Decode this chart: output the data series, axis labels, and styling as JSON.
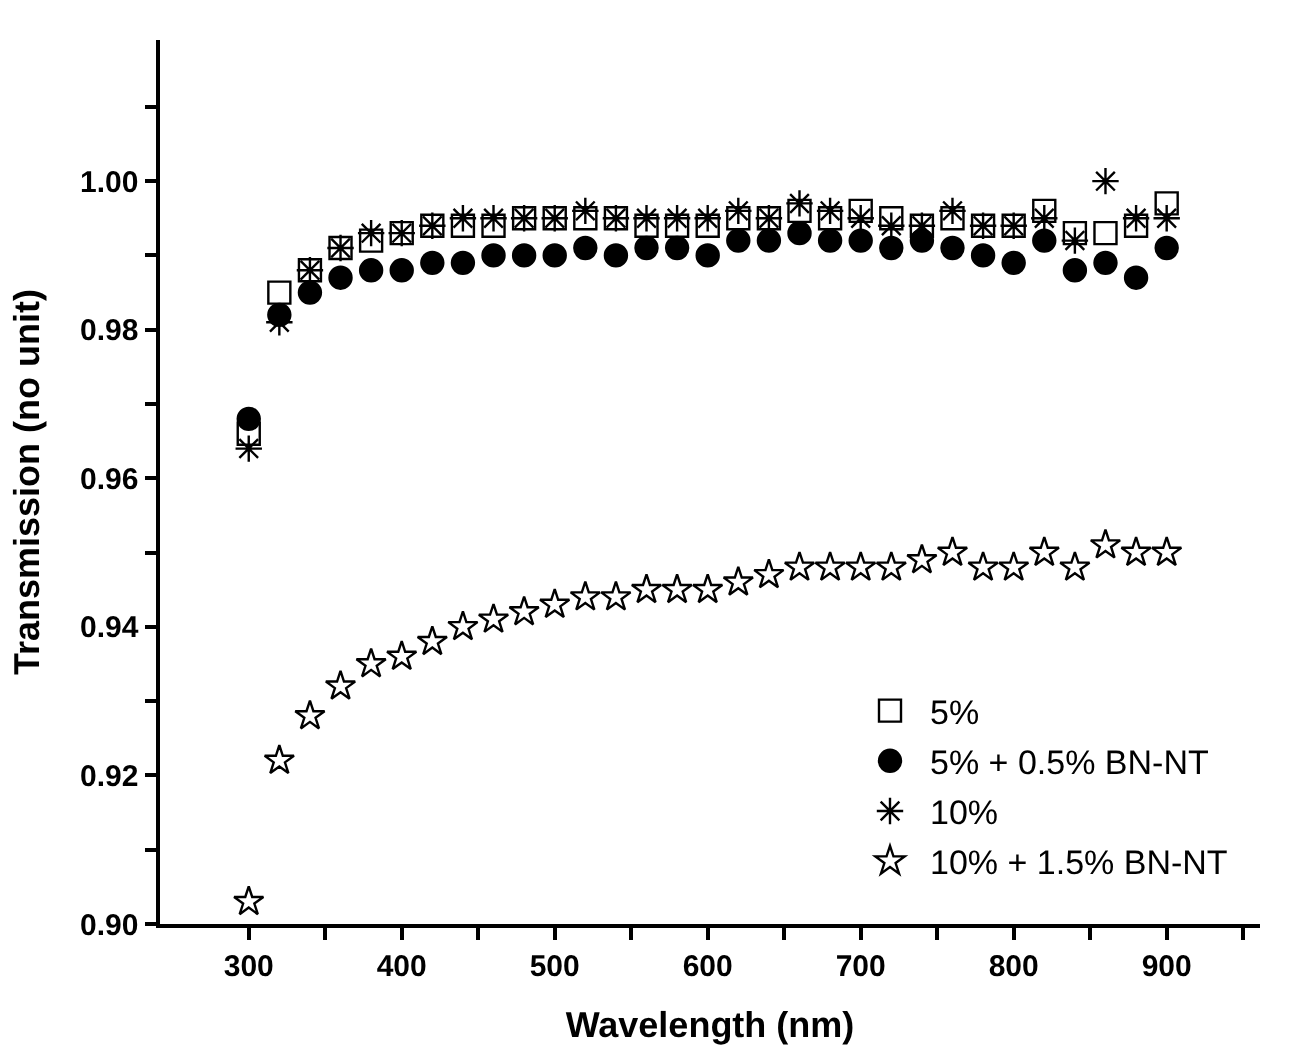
{
  "chart_data": {
    "type": "scatter",
    "xlabel": "Wavelength (nm)",
    "ylabel": "Transmission (no unit)",
    "x": [
      300,
      320,
      340,
      360,
      380,
      400,
      420,
      440,
      460,
      480,
      500,
      520,
      540,
      560,
      580,
      600,
      620,
      640,
      660,
      680,
      700,
      720,
      740,
      760,
      780,
      800,
      820,
      840,
      860,
      880,
      900
    ],
    "series": [
      {
        "name": "5%",
        "color": "#000000",
        "marker": "square",
        "values": [
          0.966,
          0.985,
          0.988,
          0.991,
          0.992,
          0.993,
          0.994,
          0.994,
          0.994,
          0.995,
          0.995,
          0.995,
          0.995,
          0.994,
          0.994,
          0.994,
          0.995,
          0.995,
          0.996,
          0.995,
          0.996,
          0.995,
          0.994,
          0.995,
          0.994,
          0.994,
          0.996,
          0.993,
          0.993,
          0.994,
          0.997
        ]
      },
      {
        "name": "5% + 0.5% BN-NT",
        "color": "#000000",
        "marker": "circle",
        "values": [
          0.968,
          0.982,
          0.985,
          0.987,
          0.988,
          0.988,
          0.989,
          0.989,
          0.99,
          0.99,
          0.99,
          0.991,
          0.99,
          0.991,
          0.991,
          0.99,
          0.992,
          0.992,
          0.993,
          0.992,
          0.992,
          0.991,
          0.992,
          0.991,
          0.99,
          0.989,
          0.992,
          0.988,
          0.989,
          0.987,
          0.991
        ]
      },
      {
        "name": "10%",
        "color": "#000000",
        "marker": "cross",
        "values": [
          0.964,
          0.981,
          0.988,
          0.991,
          0.993,
          0.993,
          0.994,
          0.995,
          0.995,
          0.995,
          0.995,
          0.996,
          0.995,
          0.995,
          0.995,
          0.995,
          0.996,
          0.995,
          0.997,
          0.996,
          0.995,
          0.994,
          0.994,
          0.996,
          0.994,
          0.994,
          0.995,
          0.992,
          1.0,
          0.995,
          0.995
        ]
      },
      {
        "name": "10% + 1.5% BN-NT",
        "color": "#000000",
        "marker": "star",
        "values": [
          0.903,
          0.922,
          0.928,
          0.932,
          0.935,
          0.936,
          0.938,
          0.94,
          0.941,
          0.942,
          0.943,
          0.944,
          0.944,
          0.945,
          0.945,
          0.945,
          0.946,
          0.947,
          0.948,
          0.948,
          0.948,
          0.948,
          0.949,
          0.95,
          0.948,
          0.948,
          0.95,
          0.948,
          0.951,
          0.95,
          0.95
        ]
      }
    ],
    "xlim": [
      242,
      961
    ],
    "ylim": [
      0.9,
      1.019
    ],
    "xticks": [
      300,
      {
        "value": 350,
        "label": null
      },
      400,
      {
        "value": 450,
        "label": null
      },
      500,
      {
        "value": 550,
        "label": null
      },
      600,
      {
        "value": 650,
        "label": null
      },
      700,
      {
        "value": 750,
        "label": null
      },
      800,
      {
        "value": 850,
        "label": null
      },
      900,
      {
        "value": 950,
        "label": null
      }
    ],
    "yticks": [
      {
        "value": 0.9,
        "label": "0.90"
      },
      {
        "value": 0.91,
        "label": null
      },
      {
        "value": 0.92,
        "label": "0.92"
      },
      {
        "value": 0.93,
        "label": null
      },
      {
        "value": 0.94,
        "label": "0.94"
      },
      {
        "value": 0.95,
        "label": null
      },
      {
        "value": 0.96,
        "label": "0.96"
      },
      {
        "value": 0.97,
        "label": null
      },
      {
        "value": 0.98,
        "label": "0.98"
      },
      {
        "value": 0.99,
        "label": null
      },
      {
        "value": 1.0,
        "label": "1.00"
      },
      {
        "value": 1.01,
        "label": null
      }
    ],
    "legend": "bottom right"
  }
}
